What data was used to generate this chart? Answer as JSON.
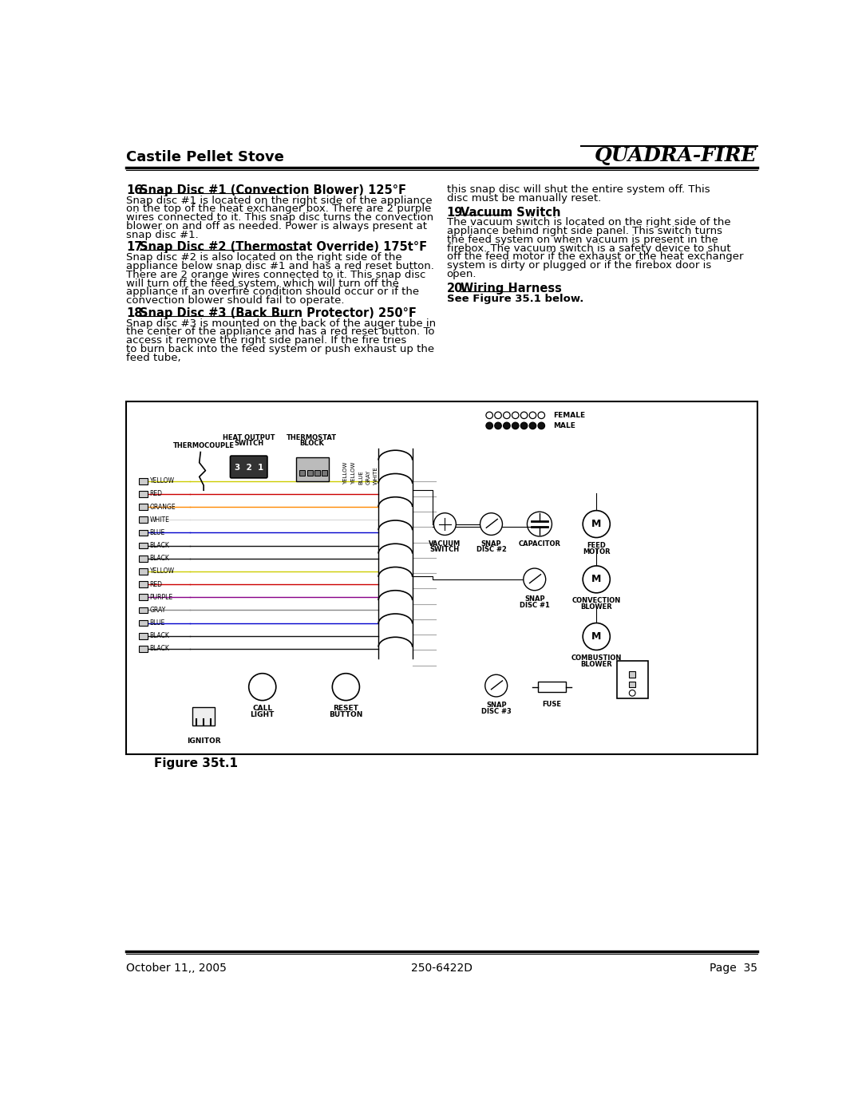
{
  "page_width": 10.8,
  "page_height": 13.97,
  "bg_color": "#ffffff",
  "header_title": "Castile Pellet Stove",
  "header_logo": "QUADRA-FIRE",
  "footer_date": "October 11,, 2005",
  "footer_doc": "250-6422D",
  "footer_page": "Page  35",
  "figure_label": "Figure 35t.1",
  "sections_left": [
    {
      "num": "16.",
      "heading": "Snap Disc #1 (Convection Blower) 125°F",
      "body": "Snap disc #1 is located on the right side of the appliance on the top of the heat exchanger box.  There are 2 purple wires connected to it.  This snap disc turns the convection blower on and off as needed.  Power is always present at snap disc #1."
    },
    {
      "num": "17.",
      "heading": "Snap Disc #2 (Thermostat Override) 175t°F",
      "body": "Snap disc #2 is also located on the right side of the appliance below snap disc #1 and has a red reset button.  There are 2 orange wires connected to it.  This snap disc will turn off the feed system, which will turn off the appliance if an overfire condition should occur or if the convection blower should fail to operate."
    },
    {
      "num": "18.",
      "heading": "Snap Disc #3 (Back Burn Protector) 250°F",
      "body": "Snap disc #3 is mounted on the back of the auger tube in the center of the appliance and has a red reset button.  To access it remove the right side panel.  If the fire tries to burn back into the feed system or push exhaust up the feed tube,"
    }
  ],
  "sections_right": [
    {
      "num": "",
      "heading": "",
      "body": "this snap disc will shut the entire system off.  This disc must be manually reset."
    },
    {
      "num": "19.",
      "heading": "Vacuum Switch",
      "body": "The vacuum switch is located on the right side of the appliance behind right side panel.  This switch turns the feed system on when vacuum is present in the firebox. The vacuum switch is a safety device to shut off the feed motor if the exhaust or the heat exchanger system is dirty or plugged or if the firebox door is open."
    },
    {
      "num": "20.",
      "heading": "Wiring Harness",
      "body": "See Figure 35.1 below.",
      "body_bold": true
    }
  ],
  "wire_labels": [
    "YELLOW",
    "RED",
    "ORANGE",
    "WHITE",
    "BLUE",
    "BLACK",
    "BLACK",
    "YELLOW",
    "RED",
    "PURPLE",
    "GRAY",
    "BLUE",
    "BLACK",
    "BLACK"
  ],
  "wire_colors": {
    "YELLOW": "#cccc00",
    "RED": "#cc0000",
    "ORANGE": "#ff8800",
    "WHITE": "#dddddd",
    "BLUE": "#0000cc",
    "BLACK": "#111111",
    "PURPLE": "#880088",
    "GRAY": "#888888"
  },
  "vert_wire_labels": [
    "YELLOW",
    "YELLOW",
    "BLUE",
    "GRAY",
    "WHITE"
  ]
}
